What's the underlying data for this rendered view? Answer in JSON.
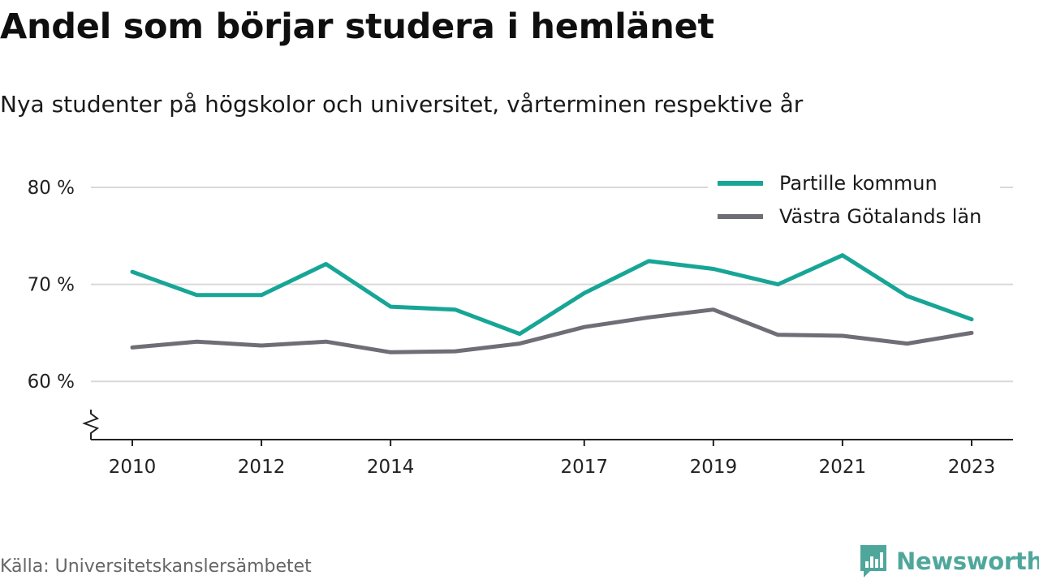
{
  "header": {
    "title": "Andel som börjar studera i hemlänet",
    "subtitle": "Nya studenter på högskolor och universitet, vårterminen respektive år"
  },
  "footer": {
    "source": "Källa: Universitetskanslersämbetet",
    "brand": "Newsworthy",
    "brand_icon": "bar-chart-speech-bubble-icon",
    "brand_color": "#4fa79b"
  },
  "chart_data": {
    "type": "line",
    "x": [
      2010,
      2011,
      2012,
      2013,
      2014,
      2015,
      2016,
      2017,
      2018,
      2019,
      2020,
      2021,
      2022,
      2023
    ],
    "x_tick_labels": [
      "2010",
      "2012",
      "2014",
      "2017",
      "2019",
      "2021",
      "2023"
    ],
    "y_ticks": [
      60,
      70,
      80
    ],
    "y_tick_labels": [
      "60 %",
      "70 %",
      "80 %"
    ],
    "ylim": [
      54,
      80
    ],
    "y_axis_break": true,
    "grid": "horizontal",
    "legend_position": "top-right",
    "series": [
      {
        "name": "Partille kommun",
        "color": "#17a596",
        "values": [
          71.3,
          68.9,
          68.9,
          72.1,
          67.7,
          67.4,
          64.9,
          69.1,
          72.4,
          71.6,
          70.0,
          73.0,
          68.8,
          66.4
        ]
      },
      {
        "name": "Västra Götalands län",
        "color": "#6e6e76",
        "values": [
          63.5,
          64.1,
          63.7,
          64.1,
          63.0,
          63.1,
          63.9,
          65.6,
          66.6,
          67.4,
          64.8,
          64.7,
          63.9,
          65.0
        ]
      }
    ]
  }
}
